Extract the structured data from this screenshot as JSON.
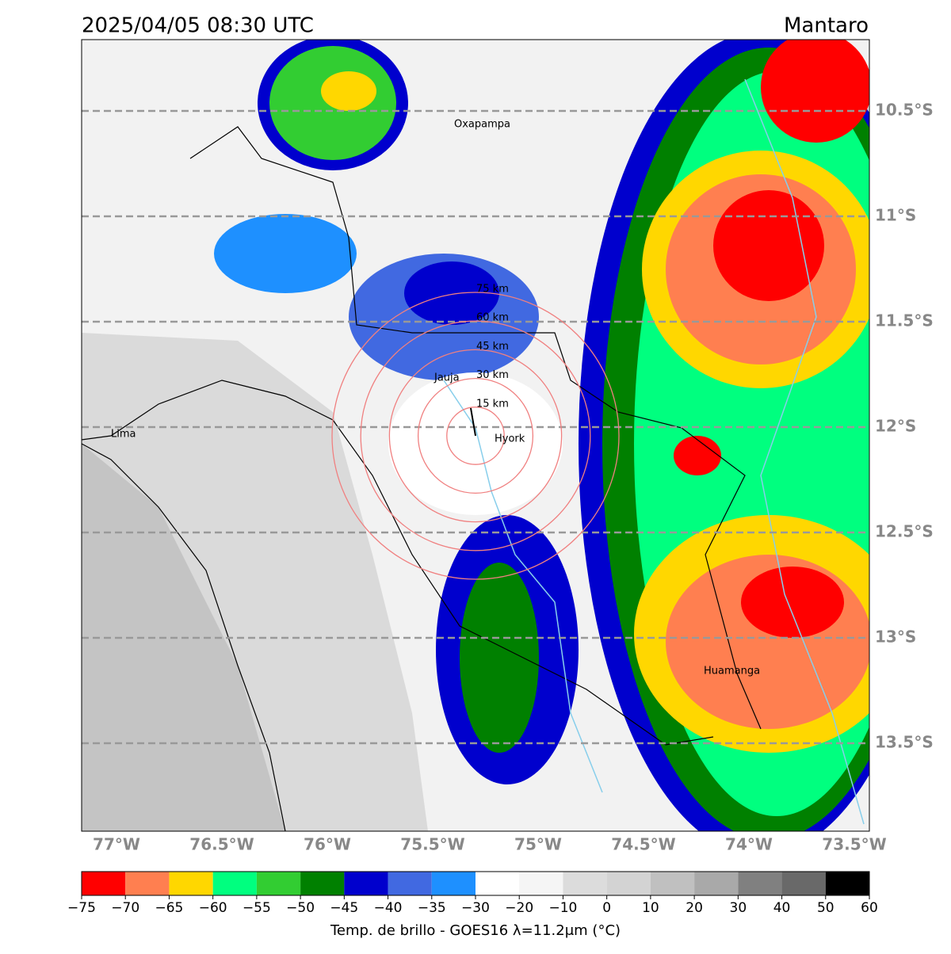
{
  "header": {
    "title": "2025/04/05 08:30 UTC",
    "region": "Mantaro"
  },
  "map": {
    "lat_labels": [
      "10.5°S",
      "11°S",
      "11.5°S",
      "12°S",
      "12.5°S",
      "13°S",
      "13.5°S"
    ],
    "lon_labels": [
      "77°W",
      "76.5°W",
      "76°W",
      "75.5°W",
      "75°W",
      "74.5°W",
      "74°W",
      "73.5°W"
    ],
    "cities": [
      "Oxapampa",
      "Jauja",
      "Hyork",
      "Lima",
      "Huamanga"
    ],
    "rings": [
      "15 km",
      "30 km",
      "45 km",
      "60 km",
      "75 km"
    ]
  },
  "colorbar": {
    "label": "Temp. de brillo - GOES16 λ=11.2μm (°C)",
    "ticks": [
      {
        "value": -75,
        "label": "−75"
      },
      {
        "value": -70,
        "label": "−70"
      },
      {
        "value": -65,
        "label": "−65"
      },
      {
        "value": -60,
        "label": "−60"
      },
      {
        "value": -55,
        "label": "−55"
      },
      {
        "value": -50,
        "label": "−50"
      },
      {
        "value": -45,
        "label": "−45"
      },
      {
        "value": -40,
        "label": "−40"
      },
      {
        "value": -35,
        "label": "−35"
      },
      {
        "value": -30,
        "label": "−30"
      },
      {
        "value": -20,
        "label": "−20"
      },
      {
        "value": -10,
        "label": "−10"
      },
      0,
      10,
      20,
      30,
      40,
      50,
      60
    ],
    "colors": [
      "#ff0000",
      "#ff7f50",
      "#ffd700",
      "#00ff7f",
      "#32cd32",
      "#008000",
      "#0000cd",
      "#4169e1",
      "#1e90ff",
      "#ffffff",
      "#f5f5f5",
      "#dcdcdc",
      "#d3d3d3",
      "#c0c0c0",
      "#a9a9a9",
      "#808080",
      "#696969",
      "#000000"
    ]
  }
}
